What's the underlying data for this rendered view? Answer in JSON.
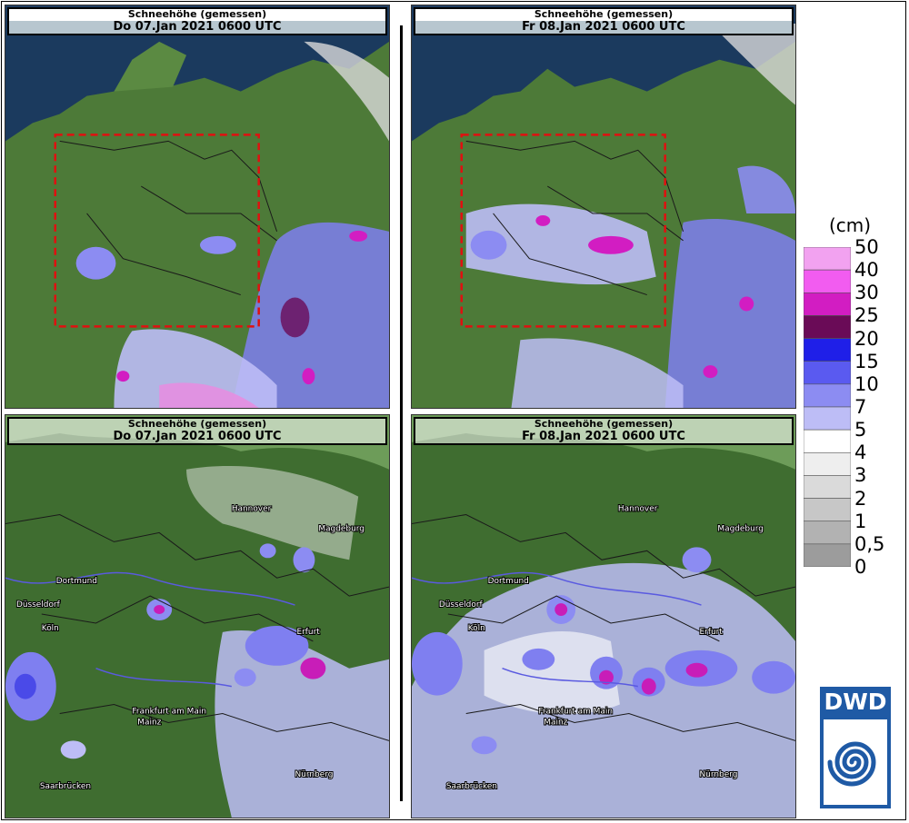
{
  "panels": [
    {
      "title": "Schneehöhe (gemessen)",
      "date": "Do 07.Jan 2021 0600 UTC"
    },
    {
      "title": "Schneehöhe (gemessen)",
      "date": "Fr 08.Jan 2021 0600 UTC"
    },
    {
      "title": "Schneehöhe (gemessen)",
      "date": "Do 07.Jan 2021 0600 UTC"
    },
    {
      "title": "Schneehöhe (gemessen)",
      "date": "Fr 08.Jan 2021 0600 UTC"
    }
  ],
  "cities": [
    "Hannover",
    "Magdeburg",
    "Dortmund",
    "Düsseldorf",
    "Köln",
    "Erfurt",
    "Frankfurt am Main",
    "Mainz",
    "Saarbrücken",
    "Nürnberg"
  ],
  "legend": {
    "unit": "(cm)",
    "labels": [
      "50",
      "40",
      "30",
      "25",
      "20",
      "15",
      "10",
      "7",
      "5",
      "4",
      "3",
      "2",
      "1",
      "0,5",
      "0"
    ],
    "colors": [
      "#f2a2f0",
      "#f25cf0",
      "#d21dc2",
      "#6a0b57",
      "#1f1fe8",
      "#5a5af0",
      "#8c8cf2",
      "#bdbdf6",
      "#ffffff",
      "#eeeeee",
      "#dadada",
      "#c7c7c7",
      "#b2b2b2",
      "#9c9c9c"
    ]
  },
  "colors": {
    "sea": "#1b3a5e",
    "land": "#4d7a38",
    "snow_light": "#bdbdf6",
    "snow_mid": "#7f7ff0",
    "snow_heavy": "#c81db8"
  },
  "logo": "DWD"
}
